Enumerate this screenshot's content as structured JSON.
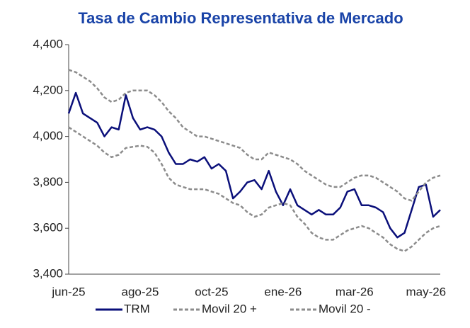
{
  "chart_data": {
    "type": "line",
    "title": "Tasa de Cambio Representativa de Mercado",
    "categories": [
      "jun-25",
      null,
      null,
      null,
      null,
      null,
      null,
      null,
      null,
      null,
      "ago-25",
      null,
      null,
      null,
      null,
      null,
      null,
      null,
      null,
      null,
      "oct-25",
      null,
      null,
      null,
      null,
      null,
      null,
      null,
      null,
      null,
      "ene-26",
      null,
      null,
      null,
      null,
      null,
      null,
      null,
      null,
      null,
      "mar-26",
      null,
      null,
      null,
      null,
      null,
      null,
      null,
      null,
      null,
      "may-26",
      null,
      null
    ],
    "series": [
      {
        "name": "TRM",
        "color": "#0a0f7a",
        "dash": false,
        "values": [
          4100,
          4190,
          4100,
          4080,
          4060,
          4000,
          4040,
          4030,
          4180,
          4080,
          4030,
          4040,
          4030,
          4000,
          3930,
          3880,
          3880,
          3900,
          3890,
          3910,
          3860,
          3880,
          3850,
          3730,
          3760,
          3800,
          3810,
          3770,
          3850,
          3760,
          3700,
          3770,
          3700,
          3680,
          3660,
          3680,
          3660,
          3660,
          3690,
          3760,
          3770,
          3700,
          3700,
          3690,
          3670,
          3600,
          3560,
          3580,
          3680,
          3780,
          3790,
          3650,
          3680
        ]
      },
      {
        "name": "Movil 20 +",
        "color": "#8c8c8c",
        "dash": true,
        "values": [
          4290,
          4280,
          4260,
          4240,
          4210,
          4170,
          4150,
          4160,
          4190,
          4200,
          4200,
          4200,
          4180,
          4150,
          4110,
          4080,
          4040,
          4020,
          4000,
          4000,
          3990,
          3980,
          3970,
          3960,
          3950,
          3920,
          3900,
          3900,
          3930,
          3920,
          3910,
          3900,
          3880,
          3850,
          3830,
          3810,
          3790,
          3780,
          3780,
          3800,
          3820,
          3830,
          3830,
          3820,
          3800,
          3780,
          3760,
          3730,
          3720,
          3760,
          3800,
          3820,
          3830
        ]
      },
      {
        "name": "Movil 20 -",
        "color": "#8c8c8c",
        "dash": true,
        "values": [
          4040,
          4020,
          4000,
          3980,
          3960,
          3930,
          3910,
          3920,
          3950,
          3955,
          3960,
          3955,
          3930,
          3880,
          3820,
          3790,
          3780,
          3770,
          3770,
          3770,
          3760,
          3750,
          3730,
          3710,
          3700,
          3670,
          3650,
          3660,
          3690,
          3700,
          3710,
          3700,
          3650,
          3620,
          3580,
          3560,
          3550,
          3550,
          3570,
          3590,
          3600,
          3610,
          3600,
          3580,
          3560,
          3530,
          3510,
          3500,
          3520,
          3550,
          3580,
          3600,
          3610
        ]
      }
    ],
    "ylim": [
      3400,
      4400
    ],
    "yticks": [
      {
        "value": 3400,
        "label": "3,400"
      },
      {
        "value": 3600,
        "label": "3,600"
      },
      {
        "value": 3800,
        "label": "3,800"
      },
      {
        "value": 4000,
        "label": "4,000"
      },
      {
        "value": 4200,
        "label": "4,200"
      },
      {
        "value": 4400,
        "label": "4,400"
      }
    ],
    "legend": "bottom"
  }
}
